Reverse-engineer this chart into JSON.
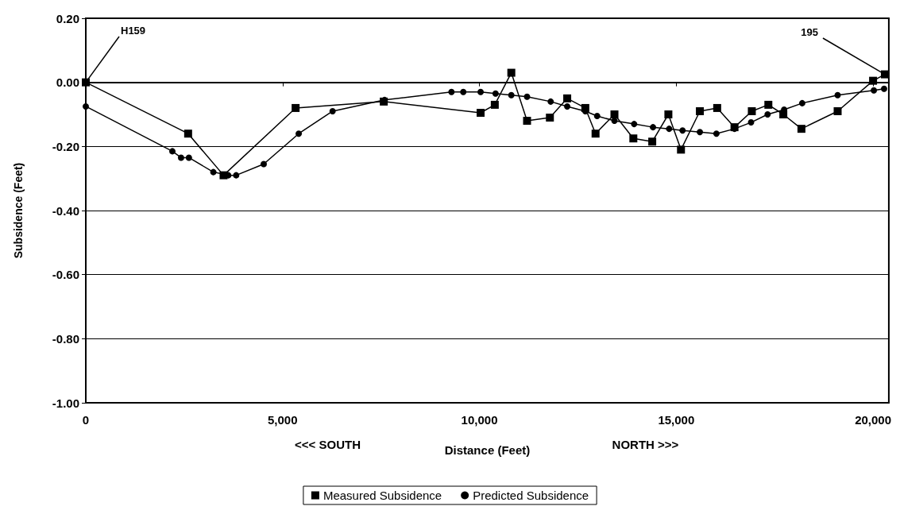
{
  "chart_data": {
    "type": "line",
    "xlabel": "Distance (Feet)",
    "ylabel": "Subsidence (Feet)",
    "xlim": [
      0,
      20400
    ],
    "xticks": [
      {
        "value": 0,
        "label": "0"
      },
      {
        "value": 5000,
        "label": "5,000"
      },
      {
        "value": 10000,
        "label": "10,000"
      },
      {
        "value": 15000,
        "label": "15,000"
      },
      {
        "value": 20000,
        "label": "20,000"
      }
    ],
    "ylim": [
      -1.0,
      0.2
    ],
    "yticks": [
      {
        "value": -1.0,
        "label": "-1.00"
      },
      {
        "value": -0.8,
        "label": "-0.80"
      },
      {
        "value": -0.6,
        "label": "-0.60"
      },
      {
        "value": -0.4,
        "label": "-0.40"
      },
      {
        "value": -0.2,
        "label": "-0.20"
      },
      {
        "value": 0,
        "label": "0.00"
      },
      {
        "value": 0.2,
        "label": "0.20"
      }
    ],
    "grid": "y",
    "legend": "bottom",
    "line_style": "solid",
    "annotations": [
      "<<< SOUTH",
      "NORTH >>>",
      {
        "text": "H159",
        "x": 0,
        "y": 0.0
      },
      {
        "text": "195",
        "x": 20300,
        "y": 0.025
      }
    ],
    "series": [
      {
        "name": "Measured Subsidence",
        "color": "#000000",
        "marker": "square",
        "x": [
          0,
          2600,
          3500,
          5330,
          7570,
          10030,
          10390,
          10810,
          11210,
          11790,
          12230,
          12690,
          12950,
          13430,
          13910,
          14390,
          14800,
          15120,
          15600,
          16040,
          16480,
          16920,
          17340,
          17720,
          18180,
          19100,
          20000,
          20300
        ],
        "values": [
          0.0,
          -0.16,
          -0.29,
          -0.08,
          -0.06,
          -0.095,
          -0.07,
          0.03,
          -0.12,
          -0.11,
          -0.05,
          -0.08,
          -0.16,
          -0.1,
          -0.175,
          -0.185,
          -0.1,
          -0.21,
          -0.09,
          -0.08,
          -0.14,
          -0.09,
          -0.07,
          -0.1,
          -0.145,
          -0.09,
          0.005,
          0.025
        ]
      },
      {
        "name": "Predicted Subsidence",
        "color": "#000000",
        "marker": "circle",
        "x": [
          0,
          2200,
          2420,
          2620,
          3240,
          3620,
          3820,
          4520,
          5410,
          6270,
          7590,
          9290,
          9590,
          10030,
          10410,
          10810,
          11210,
          11810,
          12230,
          12690,
          12990,
          13430,
          13930,
          14410,
          14820,
          15160,
          15600,
          16020,
          16480,
          16900,
          17320,
          17740,
          18200,
          19100,
          20020,
          20280
        ],
        "values": [
          -0.075,
          -0.215,
          -0.235,
          -0.235,
          -0.28,
          -0.29,
          -0.29,
          -0.255,
          -0.16,
          -0.09,
          -0.055,
          -0.03,
          -0.03,
          -0.03,
          -0.035,
          -0.04,
          -0.045,
          -0.06,
          -0.075,
          -0.09,
          -0.105,
          -0.12,
          -0.13,
          -0.14,
          -0.145,
          -0.15,
          -0.155,
          -0.16,
          -0.145,
          -0.125,
          -0.1,
          -0.085,
          -0.065,
          -0.04,
          -0.025,
          -0.02
        ]
      }
    ]
  }
}
